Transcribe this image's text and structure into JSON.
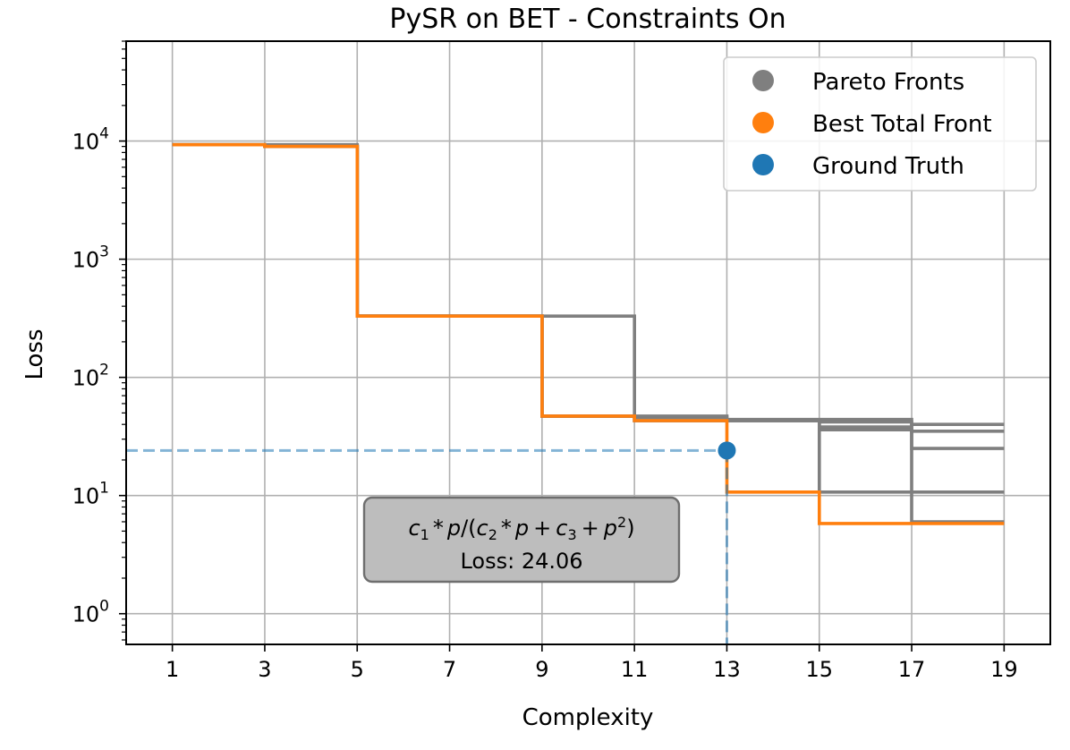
{
  "chart_data": {
    "type": "line",
    "title": "PySR on BET - Constraints On",
    "xlabel": "Complexity",
    "ylabel": "Loss",
    "xlim": [
      0,
      20
    ],
    "ylim": [
      0.55,
      70000
    ],
    "yscale": "log",
    "grid": true,
    "legend_position": "top-right",
    "xticks": [
      1,
      3,
      5,
      7,
      9,
      11,
      13,
      15,
      17,
      19
    ],
    "yticks": [
      {
        "value": 1,
        "base": "10",
        "exp": "0"
      },
      {
        "value": 10,
        "base": "10",
        "exp": "1"
      },
      {
        "value": 100,
        "base": "10",
        "exp": "2"
      },
      {
        "value": 1000,
        "base": "10",
        "exp": "3"
      },
      {
        "value": 10000,
        "base": "10",
        "exp": "4"
      }
    ],
    "legend": [
      {
        "label": "Pareto Fronts",
        "color": "#7f7f7f"
      },
      {
        "label": "Best Total Front",
        "color": "#ff7f0e"
      },
      {
        "label": "Ground Truth",
        "color": "#1f77b4"
      }
    ],
    "series": [
      {
        "group": "Pareto Fronts",
        "color": "#7f7f7f",
        "steps": [
          [
            1,
            9300
          ],
          [
            3,
            9300
          ],
          [
            5,
            330
          ],
          [
            9,
            330
          ],
          [
            11,
            46
          ],
          [
            13,
            44
          ],
          [
            15,
            44
          ],
          [
            17,
            40
          ],
          [
            19,
            40
          ]
        ]
      },
      {
        "group": "Pareto Fronts",
        "color": "#7f7f7f",
        "steps": [
          [
            1,
            9300
          ],
          [
            3,
            9000
          ],
          [
            5,
            330
          ],
          [
            9,
            47
          ],
          [
            11,
            47
          ],
          [
            13,
            43
          ],
          [
            15,
            36
          ],
          [
            17,
            35
          ],
          [
            19,
            35
          ]
        ]
      },
      {
        "group": "Pareto Fronts",
        "color": "#7f7f7f",
        "steps": [
          [
            1,
            9300
          ],
          [
            3,
            9000
          ],
          [
            5,
            330
          ],
          [
            9,
            47
          ],
          [
            11,
            43
          ],
          [
            13,
            43
          ],
          [
            15,
            10.7
          ],
          [
            17,
            10.7
          ],
          [
            19,
            10.7
          ]
        ]
      },
      {
        "group": "Pareto Fronts",
        "color": "#7f7f7f",
        "steps": [
          [
            1,
            9300
          ],
          [
            3,
            9000
          ],
          [
            5,
            330
          ],
          [
            9,
            47
          ],
          [
            11,
            43
          ],
          [
            13,
            43
          ],
          [
            15,
            42
          ],
          [
            17,
            25
          ],
          [
            19,
            25
          ]
        ]
      },
      {
        "group": "Pareto Fronts",
        "color": "#7f7f7f",
        "steps": [
          [
            1,
            9300
          ],
          [
            3,
            9000
          ],
          [
            5,
            330
          ],
          [
            9,
            47
          ],
          [
            11,
            43
          ],
          [
            13,
            43
          ],
          [
            15,
            38
          ],
          [
            17,
            6.0
          ],
          [
            19,
            6.0
          ]
        ]
      },
      {
        "name": "Best Total Front",
        "color": "#ff7f0e",
        "steps": [
          [
            1,
            9300
          ],
          [
            3,
            9000
          ],
          [
            5,
            330
          ],
          [
            9,
            47
          ],
          [
            11,
            43
          ],
          [
            13,
            10.7
          ],
          [
            15,
            5.8
          ],
          [
            17,
            5.8
          ],
          [
            19,
            5.8
          ]
        ]
      }
    ],
    "ground_truth": {
      "x": 13,
      "y": 24.06,
      "color": "#1f77b4"
    },
    "annotation": {
      "formula": {
        "c": "c",
        "s1": "1",
        "s2": "2",
        "s3": "3",
        "p": "p",
        "p2": "2",
        "star": "*",
        "slash": "/",
        "open": "(",
        "close": ")",
        "plus": "+"
      },
      "loss_text": "Loss: 24.06",
      "anchor": {
        "x": 13,
        "y": 24.06
      }
    }
  }
}
